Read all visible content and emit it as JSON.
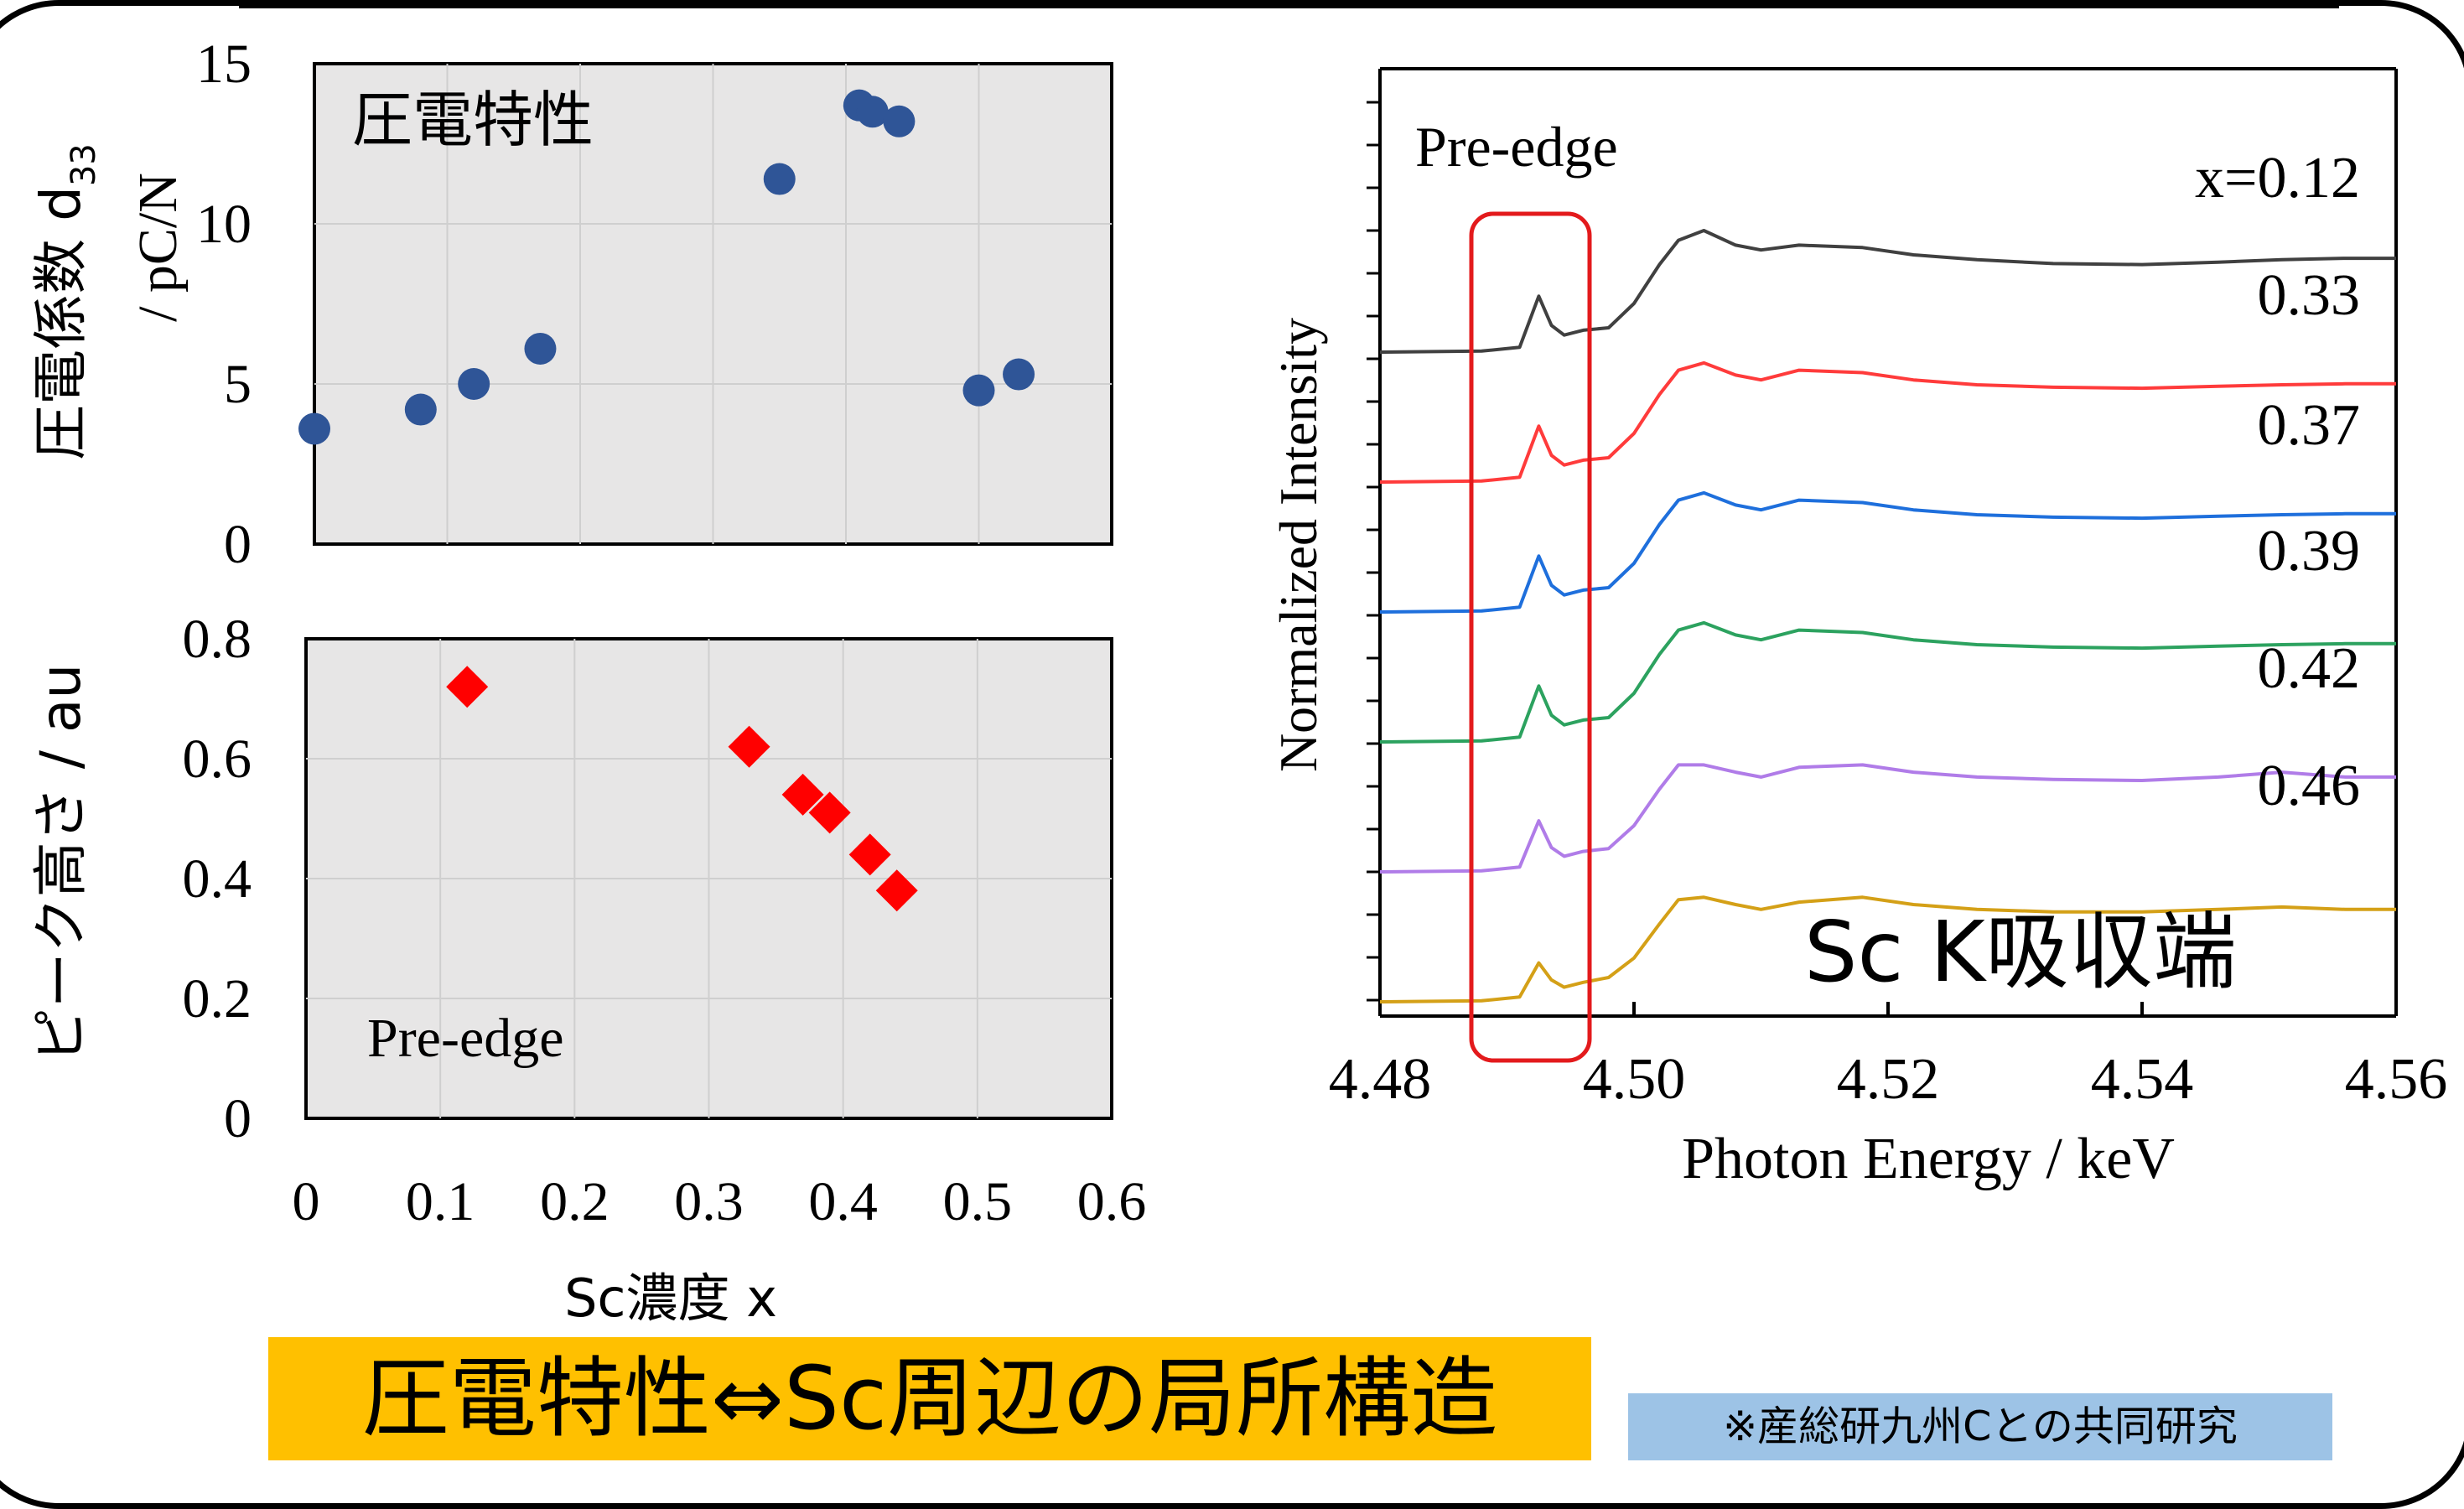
{
  "banner_text": "圧電特性⇔Sc周辺の局所構造",
  "note_text": "※産総研九州Cとの共同研究",
  "colors": {
    "scatter_points": "#2f5597",
    "diamond_points": "#ff0000",
    "highlight_box": "#e31a1c",
    "plot_bg": "#e7e6e6",
    "banner_bg": "#ffc000",
    "note_bg": "#9dc3e6"
  },
  "chart_data": [
    {
      "type": "scatter",
      "inner_label": "圧電特性",
      "ylabel_line1": "圧電係数 d",
      "ylabel_sub": "33",
      "ylabel_line2": "/ pC/N",
      "ylim": [
        0,
        15
      ],
      "xlim": [
        0,
        0.6
      ],
      "yticks": [
        "0",
        "5",
        "10",
        "15"
      ],
      "grid": true,
      "x": [
        0.0,
        0.08,
        0.12,
        0.17,
        0.35,
        0.41,
        0.42,
        0.44,
        0.5,
        0.53
      ],
      "y": [
        3.6,
        4.2,
        5.0,
        6.1,
        11.4,
        13.7,
        13.5,
        13.2,
        4.8,
        5.3
      ]
    },
    {
      "type": "scatter",
      "marker": "diamond",
      "inner_label": "Pre-edge",
      "ylabel": "ピーク高さ / au",
      "ylim": [
        0,
        0.8
      ],
      "xlim": [
        0,
        0.6
      ],
      "yticks": [
        "0",
        "0.2",
        "0.4",
        "0.6",
        "0.8"
      ],
      "xticks": [
        "0",
        "0.1",
        "0.2",
        "0.3",
        "0.4",
        "0.5",
        "0.6"
      ],
      "xlabel": "Sc濃度 x",
      "grid": true,
      "x": [
        0.12,
        0.33,
        0.37,
        0.39,
        0.42,
        0.44
      ],
      "y": [
        0.72,
        0.62,
        0.54,
        0.51,
        0.44,
        0.38
      ]
    },
    {
      "type": "line",
      "title": "Sc K吸収端",
      "annotation": "Pre-edge",
      "xlabel": "Photon Energy / keV",
      "ylabel": "Normalized Intensity",
      "xlim": [
        4.48,
        4.56
      ],
      "xticks": [
        "4.48",
        "4.50",
        "4.52",
        "4.54",
        "4.56"
      ],
      "x": [
        4.48,
        4.488,
        4.491,
        4.4925,
        4.4935,
        4.4945,
        4.496,
        4.498,
        4.5,
        4.502,
        4.5035,
        4.5055,
        4.508,
        4.51,
        4.513,
        4.518,
        4.522,
        4.527,
        4.533,
        4.54,
        4.546,
        4.551,
        4.556,
        4.56
      ],
      "series": [
        {
          "name": "x=0.12",
          "color": "#404040",
          "offset": 5,
          "values": [
            0.0,
            0.02,
            0.1,
            1.15,
            0.55,
            0.35,
            0.45,
            0.5,
            1.0,
            1.8,
            2.3,
            2.5,
            2.2,
            2.1,
            2.2,
            2.15,
            2.0,
            1.9,
            1.82,
            1.8,
            1.85,
            1.9,
            1.93,
            1.93
          ]
        },
        {
          "name": "0.33",
          "color": "#ff3b3b",
          "offset": 4,
          "values": [
            0.0,
            0.02,
            0.1,
            1.15,
            0.55,
            0.35,
            0.45,
            0.5,
            1.0,
            1.8,
            2.3,
            2.45,
            2.2,
            2.1,
            2.3,
            2.25,
            2.1,
            2.0,
            1.95,
            1.93,
            1.97,
            2.0,
            2.02,
            2.02
          ]
        },
        {
          "name": "0.37",
          "color": "#1e6fdc",
          "offset": 3,
          "values": [
            0.0,
            0.02,
            0.1,
            1.15,
            0.55,
            0.35,
            0.45,
            0.5,
            1.0,
            1.8,
            2.3,
            2.45,
            2.2,
            2.1,
            2.3,
            2.25,
            2.1,
            2.0,
            1.95,
            1.93,
            1.97,
            2.0,
            2.02,
            2.02
          ]
        },
        {
          "name": "0.39",
          "color": "#2ca25f",
          "offset": 2,
          "values": [
            0.0,
            0.02,
            0.1,
            1.15,
            0.55,
            0.35,
            0.45,
            0.5,
            1.0,
            1.8,
            2.3,
            2.45,
            2.2,
            2.1,
            2.3,
            2.25,
            2.1,
            2.0,
            1.95,
            1.93,
            1.97,
            2.0,
            2.02,
            2.02
          ]
        },
        {
          "name": "0.42",
          "color": "#b07ce8",
          "offset": 1,
          "values": [
            0.0,
            0.02,
            0.1,
            1.05,
            0.5,
            0.32,
            0.42,
            0.48,
            0.95,
            1.7,
            2.2,
            2.2,
            2.05,
            1.95,
            2.15,
            2.2,
            2.05,
            1.95,
            1.9,
            1.88,
            1.95,
            2.05,
            1.95,
            1.95
          ]
        },
        {
          "name": "0.46",
          "color": "#d4a017",
          "offset": 0,
          "values": [
            0.0,
            0.02,
            0.1,
            0.8,
            0.45,
            0.3,
            0.4,
            0.5,
            0.9,
            1.6,
            2.1,
            2.15,
            2.0,
            1.9,
            2.05,
            2.15,
            2.0,
            1.9,
            1.85,
            1.85,
            1.9,
            1.95,
            1.9,
            1.9
          ]
        }
      ]
    }
  ]
}
